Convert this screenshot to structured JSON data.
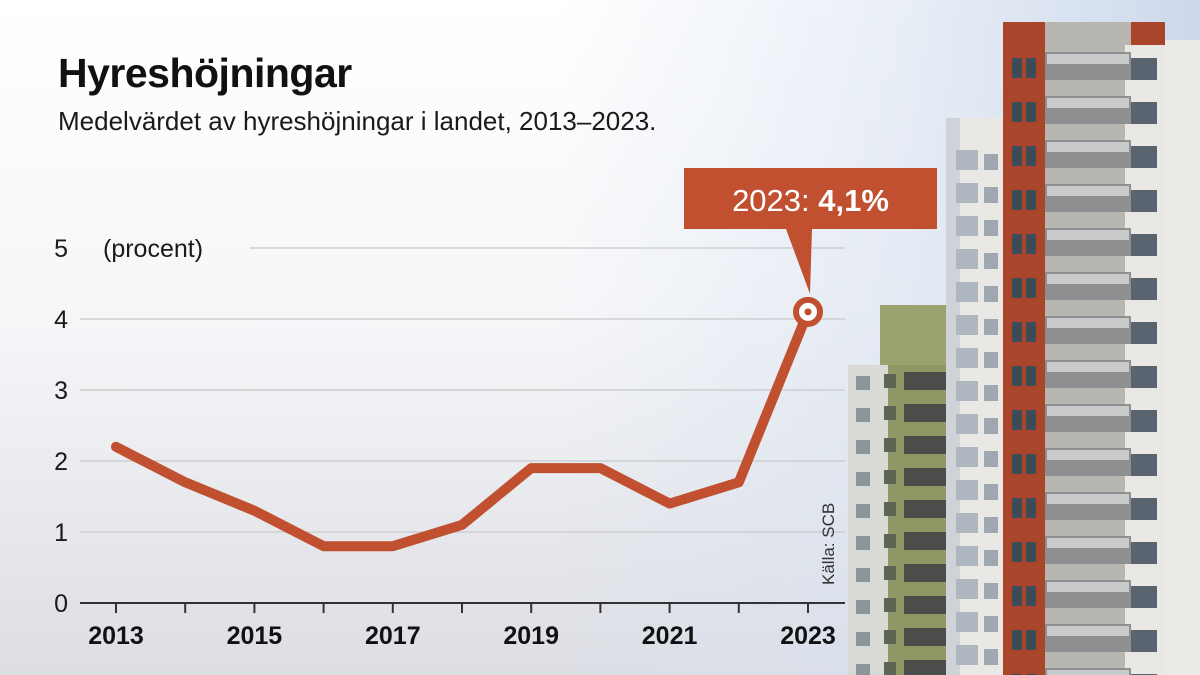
{
  "title": "Hyreshöjningar",
  "subtitle": "Medelvärdet av hyreshöjningar i landet, 2013–2023.",
  "source": "Källa: SCB",
  "chart_data": {
    "type": "line",
    "unit_label": "(procent)",
    "x": [
      2013,
      2014,
      2015,
      2016,
      2017,
      2018,
      2019,
      2020,
      2021,
      2022,
      2023
    ],
    "x_tick_labels": [
      "2013",
      "2015",
      "2017",
      "2019",
      "2021",
      "2023"
    ],
    "y_ticks": [
      0,
      1,
      2,
      3,
      4,
      5
    ],
    "ylim": [
      0,
      5
    ],
    "grid": true,
    "series": [
      {
        "values": [
          2.2,
          1.7,
          1.3,
          0.8,
          0.8,
          1.1,
          1.9,
          1.9,
          1.4,
          1.7,
          4.1
        ],
        "color": "#c0502f"
      }
    ],
    "annotation": {
      "x": 2023,
      "value": 4.1,
      "prefix": "2023: ",
      "label": "4,1%",
      "color": "#c0502f"
    }
  },
  "colors": {
    "line": "#c0502f",
    "grid": "#c8c8c8",
    "axis": "#333333",
    "brick": "#a9452b",
    "facade": "#e6e4df",
    "green_facade": "#8f9865"
  }
}
